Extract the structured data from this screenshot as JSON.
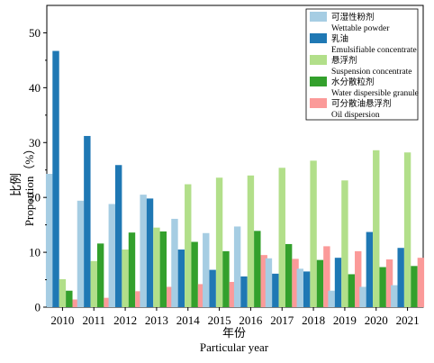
{
  "chart_data": {
    "type": "bar",
    "categories": [
      "2010",
      "2011",
      "2012",
      "2013",
      "2014",
      "2015",
      "2016",
      "2017",
      "2018",
      "2019",
      "2020",
      "2021"
    ],
    "series": [
      {
        "name": "可湿性粉剂",
        "name_en": "Wettable powder",
        "color": "#a6cde3",
        "values": [
          24.3,
          19.4,
          18.8,
          20.5,
          16.1,
          13.5,
          14.7,
          8.9,
          7.0,
          3.0,
          3.7,
          4.0
        ]
      },
      {
        "name": "乳油",
        "name_en": "Emulsifiable concentrate",
        "color": "#1f78b4",
        "values": [
          46.7,
          31.2,
          25.9,
          19.8,
          10.5,
          6.8,
          5.6,
          6.1,
          6.5,
          9.0,
          13.7,
          10.8
        ]
      },
      {
        "name": "悬浮剂",
        "name_en": "Suspension concentrate",
        "color": "#b2df8a",
        "values": [
          5.1,
          8.4,
          10.5,
          14.5,
          22.4,
          23.6,
          24.0,
          25.4,
          26.7,
          23.1,
          28.6,
          28.2
        ]
      },
      {
        "name": "水分散粒剂",
        "name_en": "Water dispersible granule",
        "color": "#33a02c",
        "values": [
          3.0,
          11.6,
          13.6,
          13.8,
          11.9,
          10.2,
          13.9,
          11.5,
          8.6,
          6.0,
          7.3,
          7.5
        ]
      },
      {
        "name": "可分散油悬浮剂",
        "name_en": "Oil dispersion",
        "color": "#fb9a99",
        "values": [
          1.4,
          1.7,
          2.9,
          3.7,
          4.2,
          4.6,
          9.5,
          8.8,
          11.1,
          10.2,
          8.7,
          9.0
        ]
      }
    ],
    "ylabel_cn": "比例",
    "ylabel_en": "Proportion（%）",
    "xlabel_cn": "年份",
    "xlabel_en": "Particular year",
    "ylim": [
      0,
      55
    ],
    "yticks": [
      0,
      10,
      20,
      30,
      40,
      50
    ],
    "grid": false,
    "legend_position": "top-right"
  }
}
